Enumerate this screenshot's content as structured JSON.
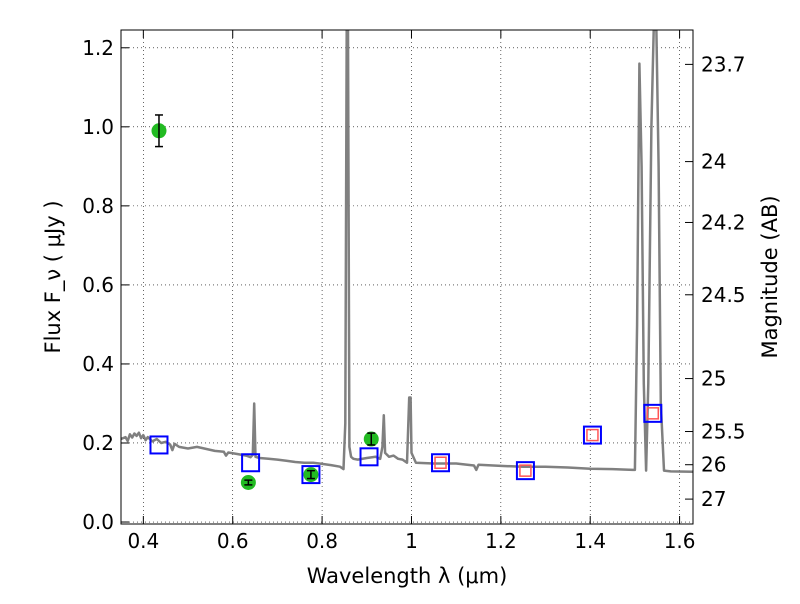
{
  "chart_data": {
    "type": "scatter",
    "title": "",
    "xlabel": "Wavelength  λ (μm)",
    "ylabel": "Flux  F_ν  ( μJy )",
    "ylabel_right": "Magnitude (AB)",
    "xlim": [
      0.35,
      1.63
    ],
    "ylim": [
      -0.005,
      1.245
    ],
    "grid": true,
    "xticks": [
      0.4,
      0.6,
      0.8,
      1.0,
      1.2,
      1.4,
      1.6
    ],
    "xtick_labels": [
      "0.4",
      "0.6",
      "0.8",
      "1",
      "1.2",
      "1.4",
      "1.6"
    ],
    "yticks": [
      0.0,
      0.2,
      0.4,
      0.6,
      0.8,
      1.0,
      1.2
    ],
    "ytick_labels": [
      "0.0",
      "0.2",
      "0.4",
      "0.6",
      "0.8",
      "1.0",
      "1.2"
    ],
    "right_ticks": [
      {
        "flux": 1.158,
        "label": "23.7"
      },
      {
        "flux": 0.912,
        "label": "24"
      },
      {
        "flux": 0.758,
        "label": "24.2"
      },
      {
        "flux": 0.575,
        "label": "24.5"
      },
      {
        "flux": 0.363,
        "label": "25"
      },
      {
        "flux": 0.229,
        "label": "25.5"
      },
      {
        "flux": 0.145,
        "label": "26"
      },
      {
        "flux": 0.058,
        "label": "27"
      }
    ],
    "series": [
      {
        "type": "line",
        "color": "#808080",
        "points": [
          [
            0.35,
            0.21
          ],
          [
            0.36,
            0.215
          ],
          [
            0.365,
            0.205
          ],
          [
            0.37,
            0.222
          ],
          [
            0.375,
            0.214
          ],
          [
            0.38,
            0.224
          ],
          [
            0.385,
            0.218
          ],
          [
            0.39,
            0.226
          ],
          [
            0.395,
            0.212
          ],
          [
            0.4,
            0.22
          ],
          [
            0.405,
            0.207
          ],
          [
            0.41,
            0.215
          ],
          [
            0.42,
            0.204
          ],
          [
            0.43,
            0.21
          ],
          [
            0.44,
            0.2
          ],
          [
            0.45,
            0.203
          ],
          [
            0.46,
            0.196
          ],
          [
            0.465,
            0.182
          ],
          [
            0.47,
            0.198
          ],
          [
            0.48,
            0.19
          ],
          [
            0.5,
            0.186
          ],
          [
            0.52,
            0.19
          ],
          [
            0.54,
            0.185
          ],
          [
            0.56,
            0.18
          ],
          [
            0.58,
            0.178
          ],
          [
            0.585,
            0.168
          ],
          [
            0.59,
            0.176
          ],
          [
            0.61,
            0.172
          ],
          [
            0.63,
            0.168
          ],
          [
            0.64,
            0.164
          ],
          [
            0.645,
            0.17
          ],
          [
            0.648,
            0.3
          ],
          [
            0.651,
            0.165
          ],
          [
            0.66,
            0.162
          ],
          [
            0.68,
            0.16
          ],
          [
            0.7,
            0.158
          ],
          [
            0.72,
            0.155
          ],
          [
            0.74,
            0.152
          ],
          [
            0.76,
            0.15
          ],
          [
            0.78,
            0.15
          ],
          [
            0.8,
            0.147
          ],
          [
            0.82,
            0.144
          ],
          [
            0.84,
            0.14
          ],
          [
            0.848,
            0.134
          ],
          [
            0.852,
            0.25
          ],
          [
            0.855,
            1.245
          ],
          [
            0.858,
            1.245
          ],
          [
            0.861,
            0.19
          ],
          [
            0.865,
            0.165
          ],
          [
            0.87,
            0.16
          ],
          [
            0.88,
            0.158
          ],
          [
            0.9,
            0.162
          ],
          [
            0.92,
            0.165
          ],
          [
            0.93,
            0.16
          ],
          [
            0.935,
            0.19
          ],
          [
            0.938,
            0.27
          ],
          [
            0.941,
            0.175
          ],
          [
            0.95,
            0.165
          ],
          [
            0.96,
            0.168
          ],
          [
            0.97,
            0.16
          ],
          [
            0.98,
            0.158
          ],
          [
            0.99,
            0.15
          ],
          [
            0.995,
            0.315
          ],
          [
            0.998,
            0.315
          ],
          [
            1.0,
            0.175
          ],
          [
            1.01,
            0.15
          ],
          [
            1.05,
            0.148
          ],
          [
            1.1,
            0.148
          ],
          [
            1.14,
            0.143
          ],
          [
            1.145,
            0.132
          ],
          [
            1.15,
            0.145
          ],
          [
            1.2,
            0.142
          ],
          [
            1.25,
            0.14
          ],
          [
            1.3,
            0.14
          ],
          [
            1.35,
            0.138
          ],
          [
            1.4,
            0.135
          ],
          [
            1.45,
            0.134
          ],
          [
            1.495,
            0.132
          ],
          [
            1.5,
            0.132
          ],
          [
            1.505,
            0.5
          ],
          [
            1.51,
            1.16
          ],
          [
            1.515,
            0.9
          ],
          [
            1.52,
            0.35
          ],
          [
            1.525,
            0.13
          ],
          [
            1.53,
            0.35
          ],
          [
            1.537,
            1.0
          ],
          [
            1.542,
            1.245
          ],
          [
            1.548,
            1.245
          ],
          [
            1.553,
            0.9
          ],
          [
            1.558,
            0.3
          ],
          [
            1.565,
            0.13
          ],
          [
            1.58,
            0.128
          ],
          [
            1.63,
            0.127
          ]
        ]
      },
      {
        "type": "points",
        "marker": "circle",
        "color": "#22bb22",
        "points": [
          {
            "x": 0.435,
            "y": 0.99,
            "err": 0.04
          },
          {
            "x": 0.635,
            "y": 0.1,
            "err": 0.006
          },
          {
            "x": 0.775,
            "y": 0.12,
            "err": 0.01
          },
          {
            "x": 0.91,
            "y": 0.21,
            "err": 0.015
          }
        ]
      },
      {
        "type": "points",
        "marker": "square",
        "color": "#0000ff",
        "points": [
          {
            "x": 0.435,
            "y": 0.195
          },
          {
            "x": 0.64,
            "y": 0.15
          },
          {
            "x": 0.775,
            "y": 0.12
          },
          {
            "x": 0.905,
            "y": 0.165
          },
          {
            "x": 1.065,
            "y": 0.15
          },
          {
            "x": 1.255,
            "y": 0.13
          },
          {
            "x": 1.405,
            "y": 0.22
          },
          {
            "x": 1.54,
            "y": 0.275
          }
        ]
      },
      {
        "type": "points",
        "marker": "square-small",
        "color": "#ff5555",
        "points": [
          {
            "x": 1.065,
            "y": 0.15
          },
          {
            "x": 1.255,
            "y": 0.13
          },
          {
            "x": 1.405,
            "y": 0.22
          },
          {
            "x": 1.54,
            "y": 0.275
          }
        ]
      }
    ]
  }
}
